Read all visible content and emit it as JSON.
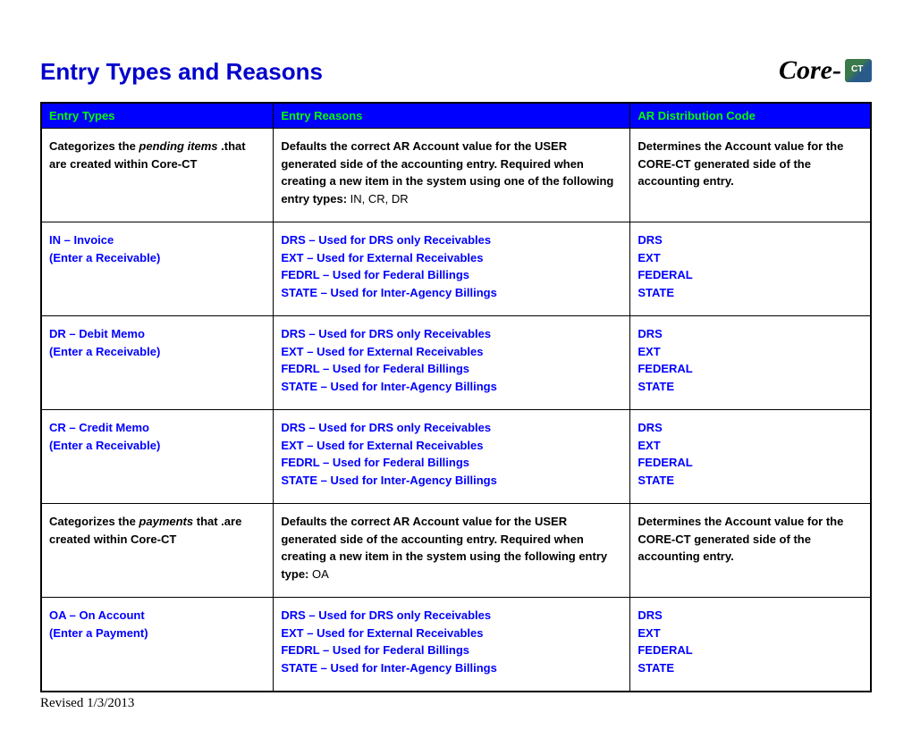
{
  "page": {
    "title": "Entry Types and Reasons",
    "logo_text": "Core-",
    "revised": "Revised 1/3/2013"
  },
  "colors": {
    "header_bg": "#0000ff",
    "header_fg": "#00ff00",
    "title_color": "#0000cc",
    "blue_text": "#0000ff",
    "border": "#000000",
    "background": "#ffffff"
  },
  "table": {
    "headers": {
      "entry_types": "Entry Types",
      "entry_reasons": "Entry Reasons",
      "ar_dist": "AR Distribution Code"
    },
    "rows": [
      {
        "kind": "desc",
        "type_pre": "Categorizes the ",
        "type_italic": "pending items",
        "type_post": " .that are created within Core-CT",
        "reason": "Defaults the correct AR Account value for the USER generated side of the accounting entry. Required when creating a new item in the system using one of the following entry types: ",
        "reason_plain": "IN, CR, DR",
        "dist": "Determines the Account value for the CORE-CT generated side of the accounting entry."
      },
      {
        "kind": "code",
        "type_lines": [
          "IN – Invoice",
          "(Enter a Receivable)"
        ],
        "reason_lines": [
          "DRS – Used for DRS only Receivables",
          "EXT – Used for External Receivables",
          "FEDRL – Used for Federal Billings",
          "STATE – Used for Inter-Agency Billings"
        ],
        "dist_lines": [
          "DRS",
          "EXT",
          "FEDERAL",
          "STATE"
        ]
      },
      {
        "kind": "code",
        "type_lines": [
          "DR – Debit Memo",
          "(Enter a Receivable)"
        ],
        "reason_lines": [
          "DRS – Used for DRS only Receivables",
          "EXT – Used for External Receivables",
          "FEDRL – Used for Federal Billings",
          "STATE – Used for Inter-Agency Billings"
        ],
        "dist_lines": [
          "DRS",
          "EXT",
          "FEDERAL",
          "STATE"
        ]
      },
      {
        "kind": "code",
        "type_lines": [
          "CR – Credit Memo",
          "(Enter a Receivable)"
        ],
        "reason_lines": [
          "DRS – Used for DRS only Receivables",
          "EXT – Used for External Receivables",
          "FEDRL – Used for Federal Billings",
          "STATE – Used for Inter-Agency Billings"
        ],
        "dist_lines": [
          "DRS",
          "EXT",
          "FEDERAL",
          "STATE"
        ]
      },
      {
        "kind": "desc",
        "type_pre": "Categorizes the ",
        "type_italic": "payments",
        "type_post": " that .are created within Core-CT",
        "reason": "Defaults the correct AR Account value for the USER generated side of the accounting entry. Required when creating a new item in the system using the following entry type: ",
        "reason_plain": "OA",
        "dist": "Determines the Account value for the CORE-CT generated side of the accounting entry."
      },
      {
        "kind": "code",
        "type_lines": [
          "OA – On Account",
          "(Enter a Payment)"
        ],
        "reason_lines": [
          "DRS – Used for DRS only Receivables",
          "EXT – Used for External Receivables",
          "FEDRL – Used for Federal Billings",
          "STATE – Used for Inter-Agency Billings"
        ],
        "dist_lines": [
          "DRS",
          "EXT",
          "FEDERAL",
          "STATE"
        ]
      }
    ]
  }
}
